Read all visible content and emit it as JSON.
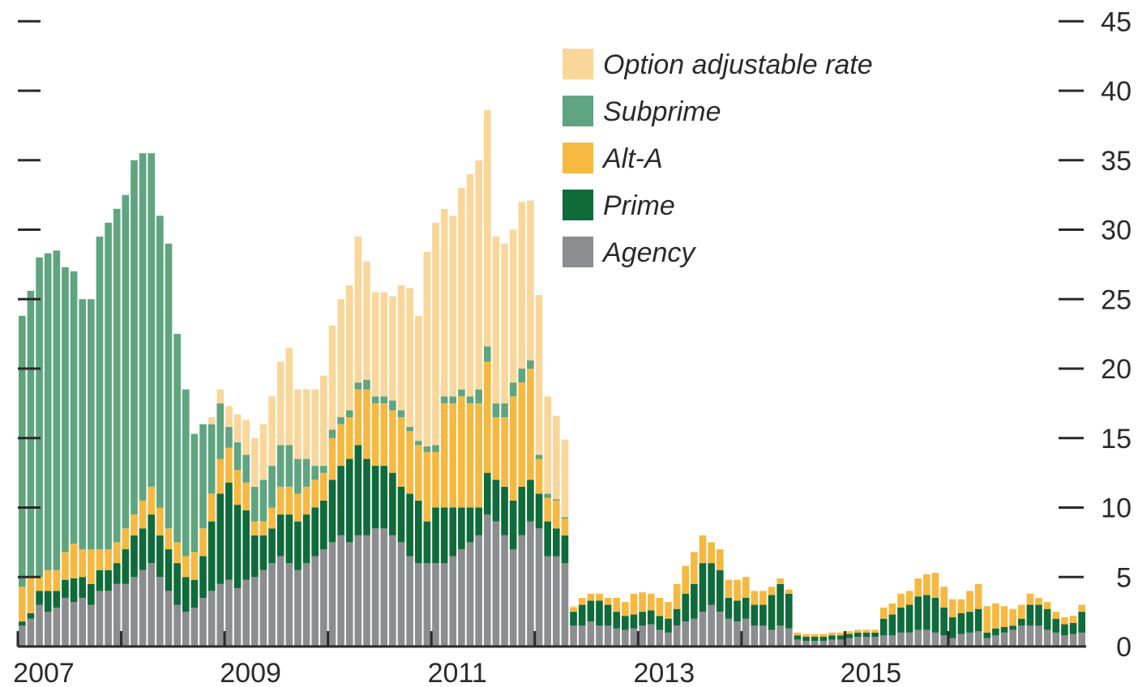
{
  "chart_data": {
    "type": "bar",
    "stacked": true,
    "title": "",
    "xlabel": "",
    "ylabel": "",
    "x_tick_labels": [
      "2007",
      "2009",
      "2011",
      "2013",
      "2015"
    ],
    "y_tick_labels": [
      "0",
      "5",
      "10",
      "15",
      "20",
      "25",
      "30",
      "35",
      "40",
      "45"
    ],
    "ylim": [
      0,
      45
    ],
    "grid": false,
    "legend": "top-center",
    "series": [
      {
        "name": "Agency",
        "color": "#8c8d8f",
        "values": [
          1.5,
          2.0,
          3.0,
          2.5,
          2.8,
          3.5,
          3.2,
          3.5,
          3.0,
          4.0,
          4.0,
          4.5,
          4.5,
          5.0,
          5.5,
          6.0,
          5.0,
          4.0,
          3.0,
          2.5,
          2.8,
          3.5,
          4.0,
          4.5,
          4.8,
          4.2,
          4.8,
          5.0,
          5.5,
          6.0,
          6.5,
          6.0,
          5.5,
          6.0,
          6.5,
          7.0,
          7.5,
          8.0,
          7.5,
          8.0,
          8.0,
          8.5,
          8.5,
          8.0,
          7.5,
          6.5,
          6.0,
          6.0,
          6.0,
          6.0,
          6.5,
          7.0,
          7.5,
          8.0,
          9.5,
          9.0,
          8.0,
          7.0,
          8.0,
          9.0,
          8.5,
          6.5,
          6.5,
          6.0,
          1.5,
          1.5,
          1.8,
          1.5,
          1.5,
          1.3,
          1.2,
          1.3,
          1.5,
          1.6,
          1.2,
          1.0,
          1.5,
          1.8,
          2.0,
          2.5,
          3.0,
          2.5,
          2.0,
          1.8,
          2.0,
          1.5,
          1.5,
          1.2,
          1.5,
          1.3,
          0.5,
          0.4,
          0.4,
          0.4,
          0.5,
          0.5,
          0.6,
          0.7,
          0.7,
          0.7,
          0.8,
          0.8,
          1.0,
          1.0,
          1.2,
          1.2,
          1.0,
          0.8,
          0.6,
          0.9,
          1.0,
          1.1,
          0.6,
          0.8,
          1.0,
          1.2,
          1.5,
          1.5,
          1.5,
          1.2,
          1.0,
          0.8,
          0.9,
          1.0
        ]
      },
      {
        "name": "Prime",
        "color": "#0f6b3a",
        "values": [
          0.3,
          0.4,
          1.0,
          1.5,
          1.2,
          1.3,
          1.7,
          1.5,
          1.5,
          1.5,
          1.5,
          1.5,
          2.5,
          3.0,
          3.0,
          3.5,
          3.0,
          3.0,
          3.0,
          2.5,
          2.0,
          3.0,
          5.0,
          6.5,
          7.0,
          6.0,
          5.0,
          3.0,
          2.5,
          2.5,
          3.0,
          3.5,
          3.5,
          3.5,
          3.5,
          3.5,
          4.5,
          5.0,
          6.0,
          6.5,
          5.5,
          4.5,
          4.5,
          4.5,
          4.0,
          4.5,
          4.5,
          3.0,
          4.0,
          4.0,
          3.5,
          3.0,
          2.5,
          2.0,
          3.0,
          3.0,
          3.5,
          3.5,
          3.5,
          3.0,
          2.5,
          2.5,
          2.0,
          2.0,
          1.0,
          1.5,
          1.5,
          1.8,
          1.5,
          1.2,
          1.0,
          1.0,
          1.0,
          1.0,
          1.0,
          1.0,
          1.2,
          2.0,
          2.5,
          3.5,
          3.0,
          3.0,
          1.5,
          1.5,
          1.5,
          1.5,
          1.5,
          2.5,
          3.0,
          2.5,
          0.3,
          0.3,
          0.3,
          0.3,
          0.3,
          0.3,
          0.3,
          0.3,
          0.3,
          0.3,
          1.2,
          1.5,
          1.8,
          2.0,
          2.4,
          2.5,
          2.5,
          2.0,
          1.5,
          1.5,
          1.5,
          1.6,
          0.4,
          0.5,
          0.4,
          0.3,
          0.5,
          1.5,
          1.5,
          1.5,
          1.0,
          0.8,
          0.8,
          1.5
        ]
      },
      {
        "name": "Alt-A",
        "color": "#f5b942",
        "values": [
          2.5,
          2.7,
          1.0,
          1.5,
          1.5,
          2.0,
          2.5,
          2.0,
          2.5,
          1.5,
          1.5,
          1.5,
          1.5,
          1.5,
          2.0,
          2.0,
          2.0,
          1.5,
          1.5,
          1.5,
          2.0,
          2.0,
          2.0,
          2.5,
          2.5,
          2.5,
          2.0,
          1.0,
          1.0,
          1.5,
          2.0,
          2.0,
          2.0,
          2.0,
          2.0,
          2.0,
          3.0,
          3.0,
          3.0,
          4.0,
          5.0,
          4.5,
          4.5,
          4.5,
          5.0,
          4.5,
          4.0,
          5.0,
          4.0,
          7.5,
          7.5,
          8.0,
          7.5,
          7.5,
          8.0,
          4.5,
          5.0,
          7.5,
          7.5,
          8.0,
          2.5,
          1.7,
          2.0,
          1.2,
          0.3,
          0.5,
          0.5,
          0.5,
          0.5,
          1.0,
          1.0,
          1.5,
          1.4,
          1.2,
          1.3,
          1.2,
          1.8,
          2.0,
          2.3,
          2.0,
          1.5,
          1.5,
          1.3,
          1.5,
          1.5,
          1.0,
          1.0,
          0.6,
          0.4,
          0.3,
          0.2,
          0.2,
          0.2,
          0.2,
          0.2,
          0.2,
          0.2,
          0.2,
          0.2,
          0.2,
          0.8,
          0.8,
          1.0,
          1.0,
          1.3,
          1.5,
          1.8,
          1.5,
          1.3,
          1.0,
          1.5,
          1.8,
          1.9,
          1.8,
          1.5,
          1.2,
          1.0,
          0.8,
          0.5,
          0.5,
          0.5,
          0.5,
          0.5,
          0.5
        ]
      },
      {
        "name": "Subprime",
        "color": "#5fa57f",
        "values": [
          19.5,
          20.5,
          23.0,
          22.8,
          23.0,
          20.5,
          19.6,
          18.0,
          18.0,
          22.5,
          23.5,
          24.0,
          24.0,
          25.5,
          25.0,
          24.0,
          21.0,
          20.5,
          15.0,
          12.0,
          8.5,
          7.5,
          5.0,
          4.0,
          1.5,
          2.0,
          2.0,
          2.5,
          3.0,
          3.0,
          3.0,
          3.0,
          2.5,
          2.0,
          1.0,
          0.5,
          0.6,
          0.5,
          0.5,
          0.5,
          0.7,
          0.5,
          0.5,
          0.7,
          0.5,
          0.3,
          0.3,
          0.4,
          0.5,
          0.5,
          0.5,
          0.5,
          0.5,
          1.0,
          1.1,
          1.0,
          1.0,
          1.0,
          1.0,
          0.6,
          0.3,
          0.3,
          0.1,
          0.1,
          0,
          0,
          0,
          0,
          0,
          0,
          0,
          0,
          0,
          0,
          0,
          0,
          0,
          0,
          0,
          0,
          0,
          0,
          0,
          0,
          0,
          0,
          0,
          0,
          0,
          0,
          0,
          0,
          0,
          0,
          0,
          0,
          0,
          0,
          0,
          0,
          0,
          0,
          0,
          0,
          0,
          0,
          0,
          0,
          0,
          0,
          0,
          0,
          0,
          0,
          0,
          0,
          0,
          0,
          0,
          0,
          0,
          0,
          0,
          0
        ]
      },
      {
        "name": "Option adjustable rate",
        "color": "#f9d79a",
        "values": [
          0,
          0,
          0,
          0,
          0,
          0,
          0,
          0,
          0,
          0,
          0,
          0,
          0,
          0,
          0,
          0,
          0,
          0,
          0,
          0,
          0,
          0,
          0.5,
          1.0,
          1.5,
          2.0,
          2.5,
          3.5,
          4.0,
          5.0,
          6.0,
          7.0,
          5.0,
          5.0,
          5.5,
          6.5,
          7.5,
          8.5,
          9.0,
          10.5,
          8.5,
          7.5,
          7.5,
          7.5,
          9.0,
          10.0,
          9.0,
          14.0,
          16.0,
          13.5,
          13.0,
          14.5,
          16.0,
          16.5,
          17.0,
          12.0,
          11.5,
          11.0,
          12.0,
          11.5,
          11.5,
          7.0,
          6.0,
          5.6,
          0.1,
          0,
          0,
          0,
          0,
          0,
          0,
          0,
          0,
          0,
          0,
          0,
          0,
          0,
          0,
          0,
          0,
          0,
          0,
          0,
          0,
          0,
          0,
          0,
          0,
          0,
          0,
          0,
          0,
          0,
          0,
          0,
          0,
          0,
          0,
          0,
          0,
          0,
          0,
          0,
          0,
          0,
          0,
          0,
          0,
          0,
          0,
          0,
          0,
          0,
          0,
          0,
          0,
          0,
          0,
          0,
          0,
          0,
          0,
          0
        ]
      }
    ]
  }
}
